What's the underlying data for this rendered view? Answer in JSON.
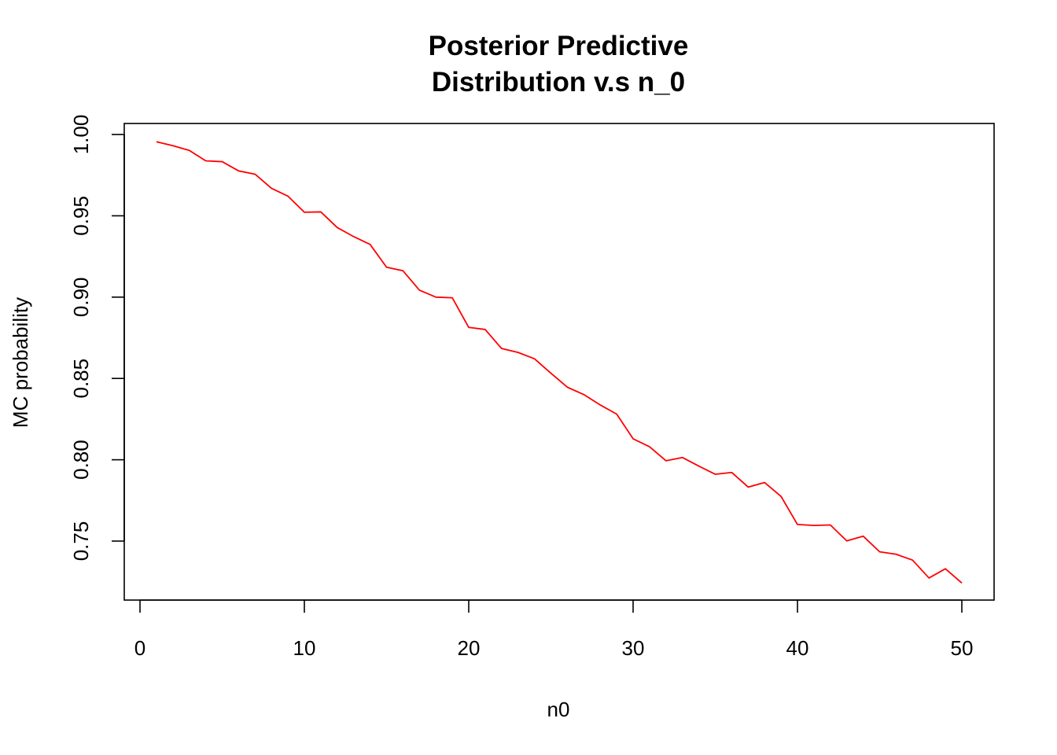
{
  "chart_data": {
    "type": "line",
    "title": [
      "Posterior Predictive",
      "Distribution v.s n_0"
    ],
    "xlabel": "n0",
    "ylabel": "MC probability",
    "xlim": [
      0,
      50
    ],
    "ylim": [
      0.72,
      1.0
    ],
    "x_ticks": [
      0,
      10,
      20,
      30,
      40,
      50
    ],
    "y_ticks": [
      0.75,
      0.8,
      0.85,
      0.9,
      0.95,
      1.0
    ],
    "x_tick_labels": [
      "0",
      "10",
      "20",
      "30",
      "40",
      "50"
    ],
    "y_tick_labels": [
      "0.75",
      "0.80",
      "0.85",
      "0.90",
      "0.95",
      "1.00"
    ],
    "grid": false,
    "legend": "none",
    "series": [
      {
        "color": "#ff0000",
        "x": [
          1,
          2,
          3,
          4,
          5,
          6,
          7,
          8,
          9,
          10,
          11,
          12,
          13,
          14,
          15,
          16,
          17,
          18,
          19,
          20,
          21,
          22,
          23,
          24,
          25,
          26,
          27,
          28,
          29,
          30,
          31,
          32,
          33,
          34,
          35,
          36,
          37,
          38,
          39,
          40,
          41,
          42,
          43,
          44,
          45,
          46,
          47,
          48,
          49,
          50
        ],
        "values": [
          0.9955,
          0.9931,
          0.9902,
          0.9838,
          0.9833,
          0.9776,
          0.9756,
          0.9669,
          0.9621,
          0.9522,
          0.9524,
          0.9428,
          0.9372,
          0.9324,
          0.9184,
          0.9162,
          0.9043,
          0.9,
          0.8996,
          0.8814,
          0.8801,
          0.8684,
          0.866,
          0.8621,
          0.8532,
          0.8446,
          0.8401,
          0.8337,
          0.8281,
          0.8129,
          0.808,
          0.7994,
          0.8014,
          0.7961,
          0.7911,
          0.7922,
          0.7832,
          0.786,
          0.7775,
          0.7602,
          0.7596,
          0.7599,
          0.7501,
          0.753,
          0.7434,
          0.7419,
          0.7383,
          0.7273,
          0.733,
          0.7242
        ]
      }
    ]
  }
}
